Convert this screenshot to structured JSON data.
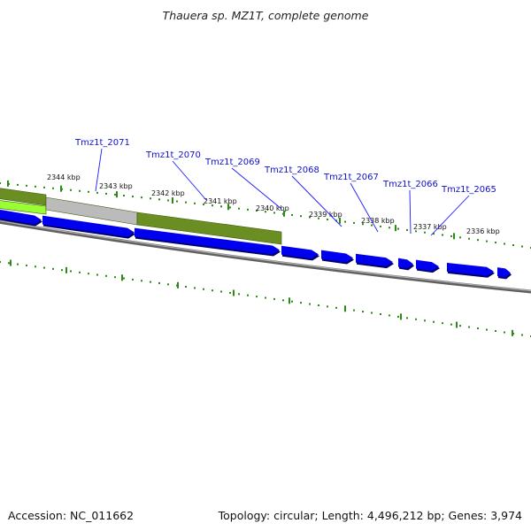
{
  "title": "Thauera sp. MZ1T, complete genome",
  "accession": "Accession: NC_011662",
  "summary": "Topology: circular; Length: 4,496,212 bp; Genes: 3,974",
  "colors": {
    "gene": "#0000ee",
    "gene_shadow": "#000066",
    "backbone": "#808080",
    "tick": "#2a8a14",
    "label_line": "#1a1aff",
    "feature_dark": "#6b8e23",
    "feature_light": "#99ff33",
    "feature_grey": "#bbbbbb"
  },
  "scale_labels": [
    "2344 kbp",
    "2343 kbp",
    "2342 kbp",
    "2341 kbp",
    "2340 kbp",
    "2339 kbp",
    "2338 kbp",
    "2337 kbp",
    "2336 kbp"
  ],
  "gene_labels": [
    "Tmz1t_2071",
    "Tmz1t_2070",
    "Tmz1t_2069",
    "Tmz1t_2068",
    "Tmz1t_2067",
    "Tmz1t_2066",
    "Tmz1t_2065"
  ]
}
